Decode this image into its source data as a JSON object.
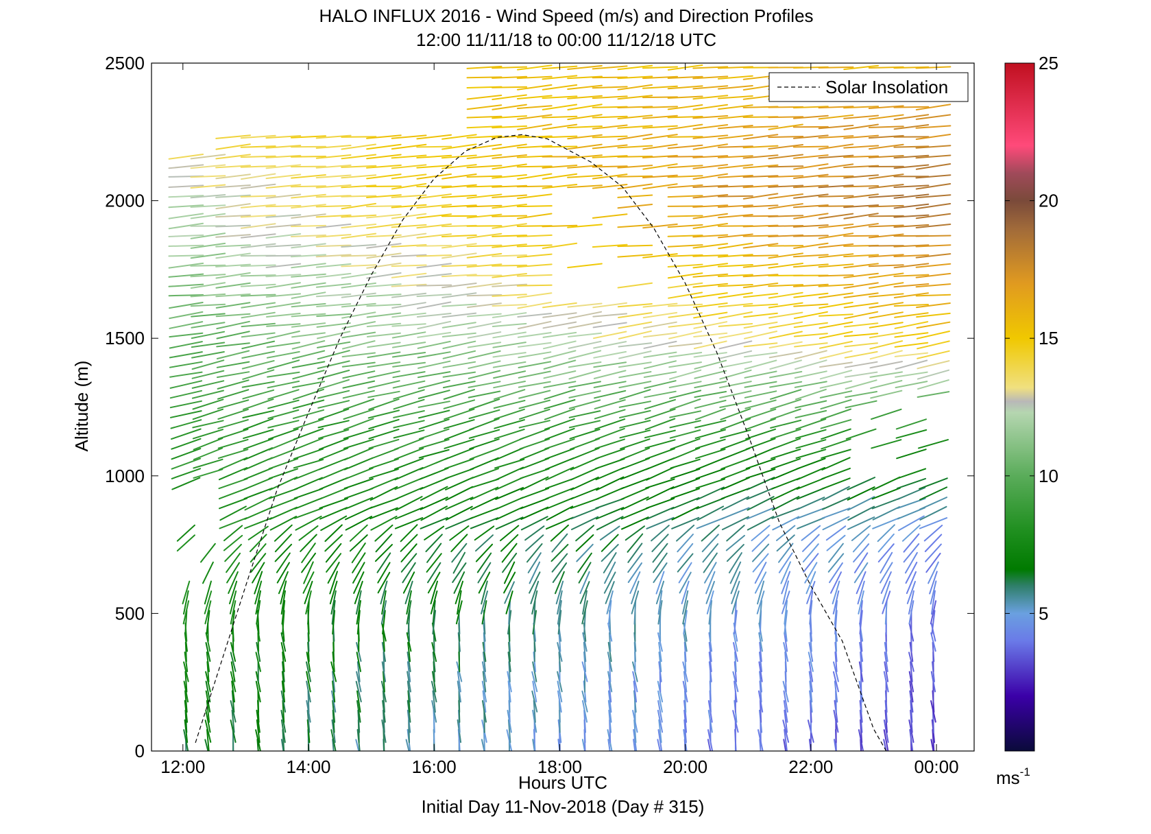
{
  "chart_data": {
    "type": "scatter",
    "subtype": "wind-barb profile (vector field colored by speed)",
    "title": "HALO INFLUX 2016 - Wind Speed (m/s) and Direction Profiles",
    "subtitle": "12:00 11/11/18 to 00:00 11/12/18  UTC",
    "xlabel": "Hours UTC",
    "xlabel2": "Initial Day 11-Nov-2018 (Day # 315)",
    "ylabel": "Altitude (m)",
    "xlim": [
      11.5,
      24.6
    ],
    "ylim": [
      0,
      2500
    ],
    "xticks": [
      12,
      14,
      16,
      18,
      20,
      22,
      24
    ],
    "xtick_labels": [
      "12:00",
      "14:00",
      "16:00",
      "18:00",
      "20:00",
      "22:00",
      "00:00"
    ],
    "yticks": [
      0,
      500,
      1000,
      1500,
      2000,
      2500
    ],
    "ytick_labels": [
      "0",
      "500",
      "1000",
      "1500",
      "2000",
      "2500"
    ],
    "grid": false,
    "legend": {
      "entries": [
        "Solar Insolation"
      ],
      "placement": "top-right"
    },
    "colorbar": {
      "range": [
        0,
        25
      ],
      "ticks": [
        5,
        10,
        15,
        20,
        25
      ],
      "tick_labels": [
        "5",
        "10",
        "15",
        "20",
        "25"
      ],
      "unit_label": "ms",
      "unit_exponent": "-1",
      "stops": [
        {
          "v": 0,
          "c": "#0a0a3a"
        },
        {
          "v": 2,
          "c": "#3b00a8"
        },
        {
          "v": 4,
          "c": "#6a7ae8"
        },
        {
          "v": 5,
          "c": "#6aa0e0"
        },
        {
          "v": 6,
          "c": "#2f7f6a"
        },
        {
          "v": 6.6,
          "c": "#007a00"
        },
        {
          "v": 8,
          "c": "#1f8f1f"
        },
        {
          "v": 10,
          "c": "#5aac5a"
        },
        {
          "v": 12.3,
          "c": "#b5d6b0"
        },
        {
          "v": 12.7,
          "c": "#b8b8b8"
        },
        {
          "v": 13.2,
          "c": "#f0e080"
        },
        {
          "v": 15,
          "c": "#f0c800"
        },
        {
          "v": 17,
          "c": "#e09a20"
        },
        {
          "v": 19,
          "c": "#a06a3a"
        },
        {
          "v": 20,
          "c": "#7a4a3a"
        },
        {
          "v": 21,
          "c": "#a04a5a"
        },
        {
          "v": 22,
          "c": "#ff4a7a"
        },
        {
          "v": 25,
          "c": "#c01020"
        }
      ]
    },
    "series": [
      {
        "name": "Solar Insolation",
        "style": "dashed",
        "color": "#000000",
        "x": [
          12.2,
          13.0,
          13.5,
          14.0,
          14.5,
          15.0,
          15.5,
          16.0,
          16.5,
          17.0,
          17.4,
          17.8,
          18.5,
          19.0,
          19.5,
          20.0,
          20.5,
          21.0,
          21.5,
          22.0,
          22.5,
          23.0,
          23.2
        ],
        "y": [
          30,
          600,
          950,
          1230,
          1500,
          1730,
          1930,
          2080,
          2180,
          2230,
          2240,
          2225,
          2140,
          2050,
          1900,
          1700,
          1450,
          1150,
          830,
          600,
          400,
          80,
          0
        ]
      }
    ],
    "wind_field": {
      "description": "Wind vectors at ~20-min columns and ~35 m levels; colour encodes speed (m/s)",
      "columns_x_hours": [
        12.05,
        12.4,
        12.8,
        13.2,
        13.6,
        14.0,
        14.4,
        14.8,
        15.2,
        15.6,
        16.0,
        16.4,
        16.8,
        17.2,
        17.6,
        18.0,
        18.4,
        18.8,
        19.2,
        19.6,
        20.0,
        20.4,
        20.8,
        21.2,
        21.6,
        22.0,
        22.4,
        22.8,
        23.2,
        23.6,
        23.95
      ],
      "speed_profile_by_altitude": [
        {
          "alt": 0,
          "speed_early": 6.5,
          "speed_late": 3.0
        },
        {
          "alt": 500,
          "speed_early": 7.5,
          "speed_late": 4.0
        },
        {
          "alt": 800,
          "speed_early": 8.0,
          "speed_late": 4.5
        },
        {
          "alt": 1200,
          "speed_early": 8.5,
          "speed_late": 9.0
        },
        {
          "alt": 1500,
          "speed_early": 10.0,
          "speed_late": 15.0
        },
        {
          "alt": 2000,
          "speed_early": 12.5,
          "speed_late": 19.0
        },
        {
          "alt": 2500,
          "speed_early": 15.0,
          "speed_late": 16.0
        }
      ]
    }
  }
}
